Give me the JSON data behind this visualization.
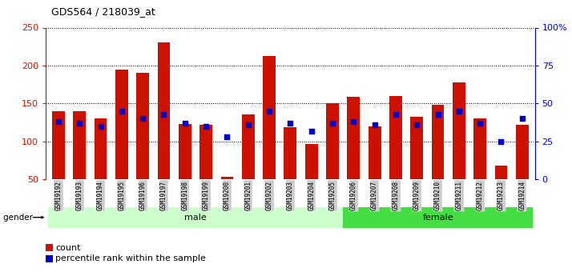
{
  "title": "GDS564 / 218039_at",
  "samples": [
    "GSM19192",
    "GSM19193",
    "GSM19194",
    "GSM19195",
    "GSM19196",
    "GSM19197",
    "GSM19198",
    "GSM19199",
    "GSM19200",
    "GSM19201",
    "GSM19202",
    "GSM19203",
    "GSM19204",
    "GSM19205",
    "GSM19206",
    "GSM19207",
    "GSM19208",
    "GSM19209",
    "GSM19210",
    "GSM19211",
    "GSM19212",
    "GSM19213",
    "GSM19214"
  ],
  "count": [
    140,
    140,
    130,
    195,
    190,
    230,
    123,
    122,
    53,
    136,
    213,
    119,
    97,
    150,
    159,
    120,
    160,
    133,
    148,
    178,
    130,
    68,
    122
  ],
  "percentile": [
    38,
    37,
    35,
    45,
    40,
    43,
    37,
    35,
    28,
    36,
    45,
    37,
    32,
    37,
    38,
    36,
    43,
    36,
    43,
    45,
    37,
    25,
    40
  ],
  "gender": [
    "male",
    "male",
    "male",
    "male",
    "male",
    "male",
    "male",
    "male",
    "male",
    "male",
    "male",
    "male",
    "male",
    "male",
    "female",
    "female",
    "female",
    "female",
    "female",
    "female",
    "female",
    "female",
    "female"
  ],
  "ylim_left": [
    50,
    250
  ],
  "ylim_right": [
    0,
    100
  ],
  "bar_color": "#cc1100",
  "dot_color": "#0000cc",
  "male_color": "#ccffcc",
  "female_color": "#44dd44",
  "label_bg": "#cccccc",
  "bar_width": 0.6
}
